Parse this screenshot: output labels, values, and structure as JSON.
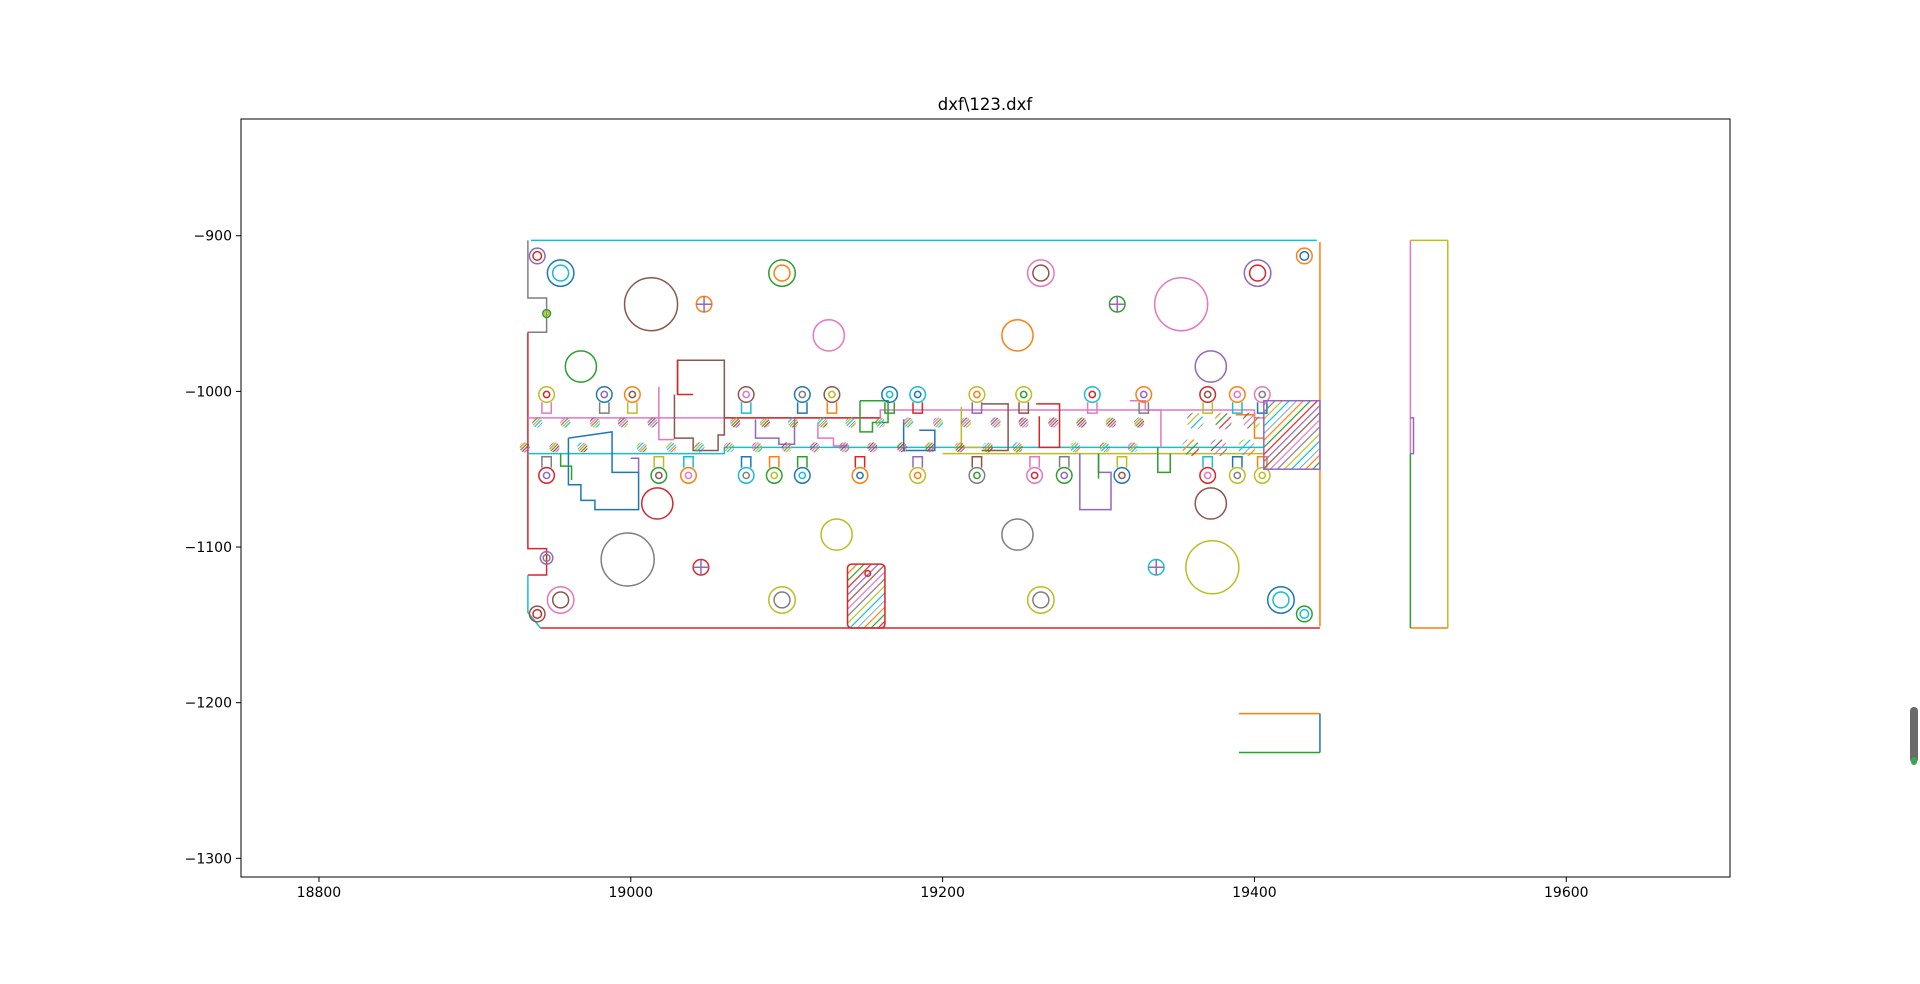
{
  "window": {
    "title": "dxf\\123.dxf"
  },
  "chart_data": {
    "type": "diagram",
    "title": "dxf\\123.dxf",
    "xlabel": "",
    "ylabel": "",
    "xlim": [
      18750,
      19705
    ],
    "ylim": [
      -1312,
      -825
    ],
    "xticks": [
      18800,
      19000,
      19200,
      19400,
      19600
    ],
    "yticks": [
      -900,
      -1000,
      -1100,
      -1200,
      -1300
    ],
    "xtick_labels": [
      "18800",
      "19000",
      "19200",
      "19400",
      "19600"
    ],
    "ytick_labels": [
      "−900",
      "−1000",
      "−1100",
      "−1200",
      "−1300"
    ],
    "colors": {
      "blue": "#1f77b4",
      "orange": "#ff7f0e",
      "green": "#2ca02c",
      "red": "#d62728",
      "purple": "#9467bd",
      "brown": "#8c564b",
      "pink": "#e377c2",
      "gray": "#7f7f7f",
      "olive": "#bcbd22",
      "cyan": "#17becf"
    },
    "board": {
      "xmin": 18934,
      "xmax": 19442,
      "ymin": -1152,
      "ymax": -903
    },
    "big_circles": [
      {
        "cx": 19013,
        "cy": -944,
        "r": 17,
        "color": "brown"
      },
      {
        "cx": 18998,
        "cy": -1108,
        "r": 17,
        "color": "gray"
      },
      {
        "cx": 19353,
        "cy": -944,
        "r": 17,
        "color": "pink"
      },
      {
        "cx": 19373,
        "cy": -1113,
        "r": 17,
        "color": "olive"
      },
      {
        "cx": 18968,
        "cy": -984,
        "r": 10,
        "color": "green"
      },
      {
        "cx": 19017,
        "cy": -1072,
        "r": 10,
        "color": "red"
      },
      {
        "cx": 19127,
        "cy": -964,
        "r": 10,
        "color": "pink"
      },
      {
        "cx": 19132,
        "cy": -1092,
        "r": 10,
        "color": "olive"
      },
      {
        "cx": 19248,
        "cy": -964,
        "r": 10,
        "color": "orange"
      },
      {
        "cx": 19248,
        "cy": -1092,
        "r": 10,
        "color": "gray"
      },
      {
        "cx": 19372,
        "cy": -984,
        "r": 10,
        "color": "purple"
      },
      {
        "cx": 19372,
        "cy": -1072,
        "r": 10,
        "color": "brown"
      }
    ],
    "double_circles": [
      {
        "cx": 18955,
        "cy": -924,
        "r": 8.5,
        "outer": "blue",
        "inner": "cyan"
      },
      {
        "cx": 19097,
        "cy": -924,
        "r": 8.5,
        "outer": "green",
        "inner": "orange"
      },
      {
        "cx": 19263,
        "cy": -924,
        "r": 8.5,
        "outer": "pink",
        "inner": "brown"
      },
      {
        "cx": 19402,
        "cy": -924,
        "r": 8.5,
        "outer": "purple",
        "inner": "red"
      },
      {
        "cx": 18955,
        "cy": -1134,
        "r": 8.5,
        "outer": "pink",
        "inner": "brown"
      },
      {
        "cx": 19097,
        "cy": -1134,
        "r": 8.5,
        "outer": "olive",
        "inner": "gray"
      },
      {
        "cx": 19263,
        "cy": -1134,
        "r": 8.5,
        "outer": "olive",
        "inner": "gray"
      },
      {
        "cx": 19417,
        "cy": -1134,
        "r": 8.5,
        "outer": "blue",
        "inner": "cyan"
      }
    ],
    "small_rings": [
      {
        "cx": 18940,
        "cy": -913,
        "r": 5,
        "outer": "purple",
        "inner": "red"
      },
      {
        "cx": 19432,
        "cy": -913,
        "r": 5,
        "outer": "orange",
        "inner": "blue"
      },
      {
        "cx": 18940,
        "cy": -1143,
        "r": 5,
        "outer": "brown",
        "inner": "red"
      },
      {
        "cx": 19432,
        "cy": -1143,
        "r": 5,
        "outer": "green",
        "inner": "cyan"
      },
      {
        "cx": 18946,
        "cy": -1107,
        "r": 4,
        "outer": "purple",
        "inner": "gray"
      },
      {
        "cx": 18946,
        "cy": -950,
        "r": 2.5,
        "outer": "green",
        "inner": "olive"
      }
    ],
    "crosshairs": [
      {
        "cx": 19047,
        "cy": -944,
        "r": 5,
        "color": "orange"
      },
      {
        "cx": 19312,
        "cy": -944,
        "r": 5,
        "color": "green"
      },
      {
        "cx": 19045,
        "cy": -1113,
        "r": 5,
        "color": "red"
      },
      {
        "cx": 19337,
        "cy": -1113,
        "r": 5,
        "color": "cyan"
      }
    ],
    "top_pins_x": [
      18946,
      18983,
      19001,
      19074,
      19110,
      19129,
      19166,
      19184,
      19222,
      19252,
      19296,
      19329,
      19370,
      19389,
      19405
    ],
    "bottom_pins_x": [
      18946,
      19018,
      19037,
      19074,
      19092,
      19110,
      19147,
      19184,
      19222,
      19259,
      19278,
      19315,
      19370,
      19389,
      19405
    ],
    "hatched_dots_row1_x": [
      18940,
      18958,
      18977,
      18995,
      19014,
      19067,
      19086,
      19104,
      19123,
      19141,
      19160,
      19178,
      19197,
      19215,
      19234,
      19252,
      19271,
      19289,
      19308,
      19326
    ],
    "hatched_dots_row2_x": [
      18932,
      18951,
      18969,
      19007,
      19026,
      19044,
      19063,
      19081,
      19100,
      19118,
      19137,
      19155,
      19174,
      19192,
      19211,
      19229,
      19248,
      19285,
      19304,
      19322
    ],
    "big_hatched_dots": [
      {
        "cx": 19362,
        "cy": -1019
      },
      {
        "cx": 19380,
        "cy": -1019
      },
      {
        "cx": 19398,
        "cy": -1019
      },
      {
        "cx": 19359,
        "cy": -1036
      },
      {
        "cx": 19377,
        "cy": -1036
      },
      {
        "cx": 19395,
        "cy": -1036
      }
    ],
    "hatched_rects": [
      {
        "xmin": 19406,
        "xmax": 19442,
        "ymin": -1050,
        "ymax": -1006
      },
      {
        "xmin": 19139,
        "xmax": 19163,
        "ymin": -1152,
        "ymax": -1111
      }
    ],
    "side_part": {
      "xmin": 19500,
      "xmax": 19524,
      "ymin": -1152,
      "ymax": -903
    },
    "bracket": {
      "xmin": 19390,
      "xmax": 19442,
      "ytop": -1207,
      "ybot": -1232
    }
  }
}
